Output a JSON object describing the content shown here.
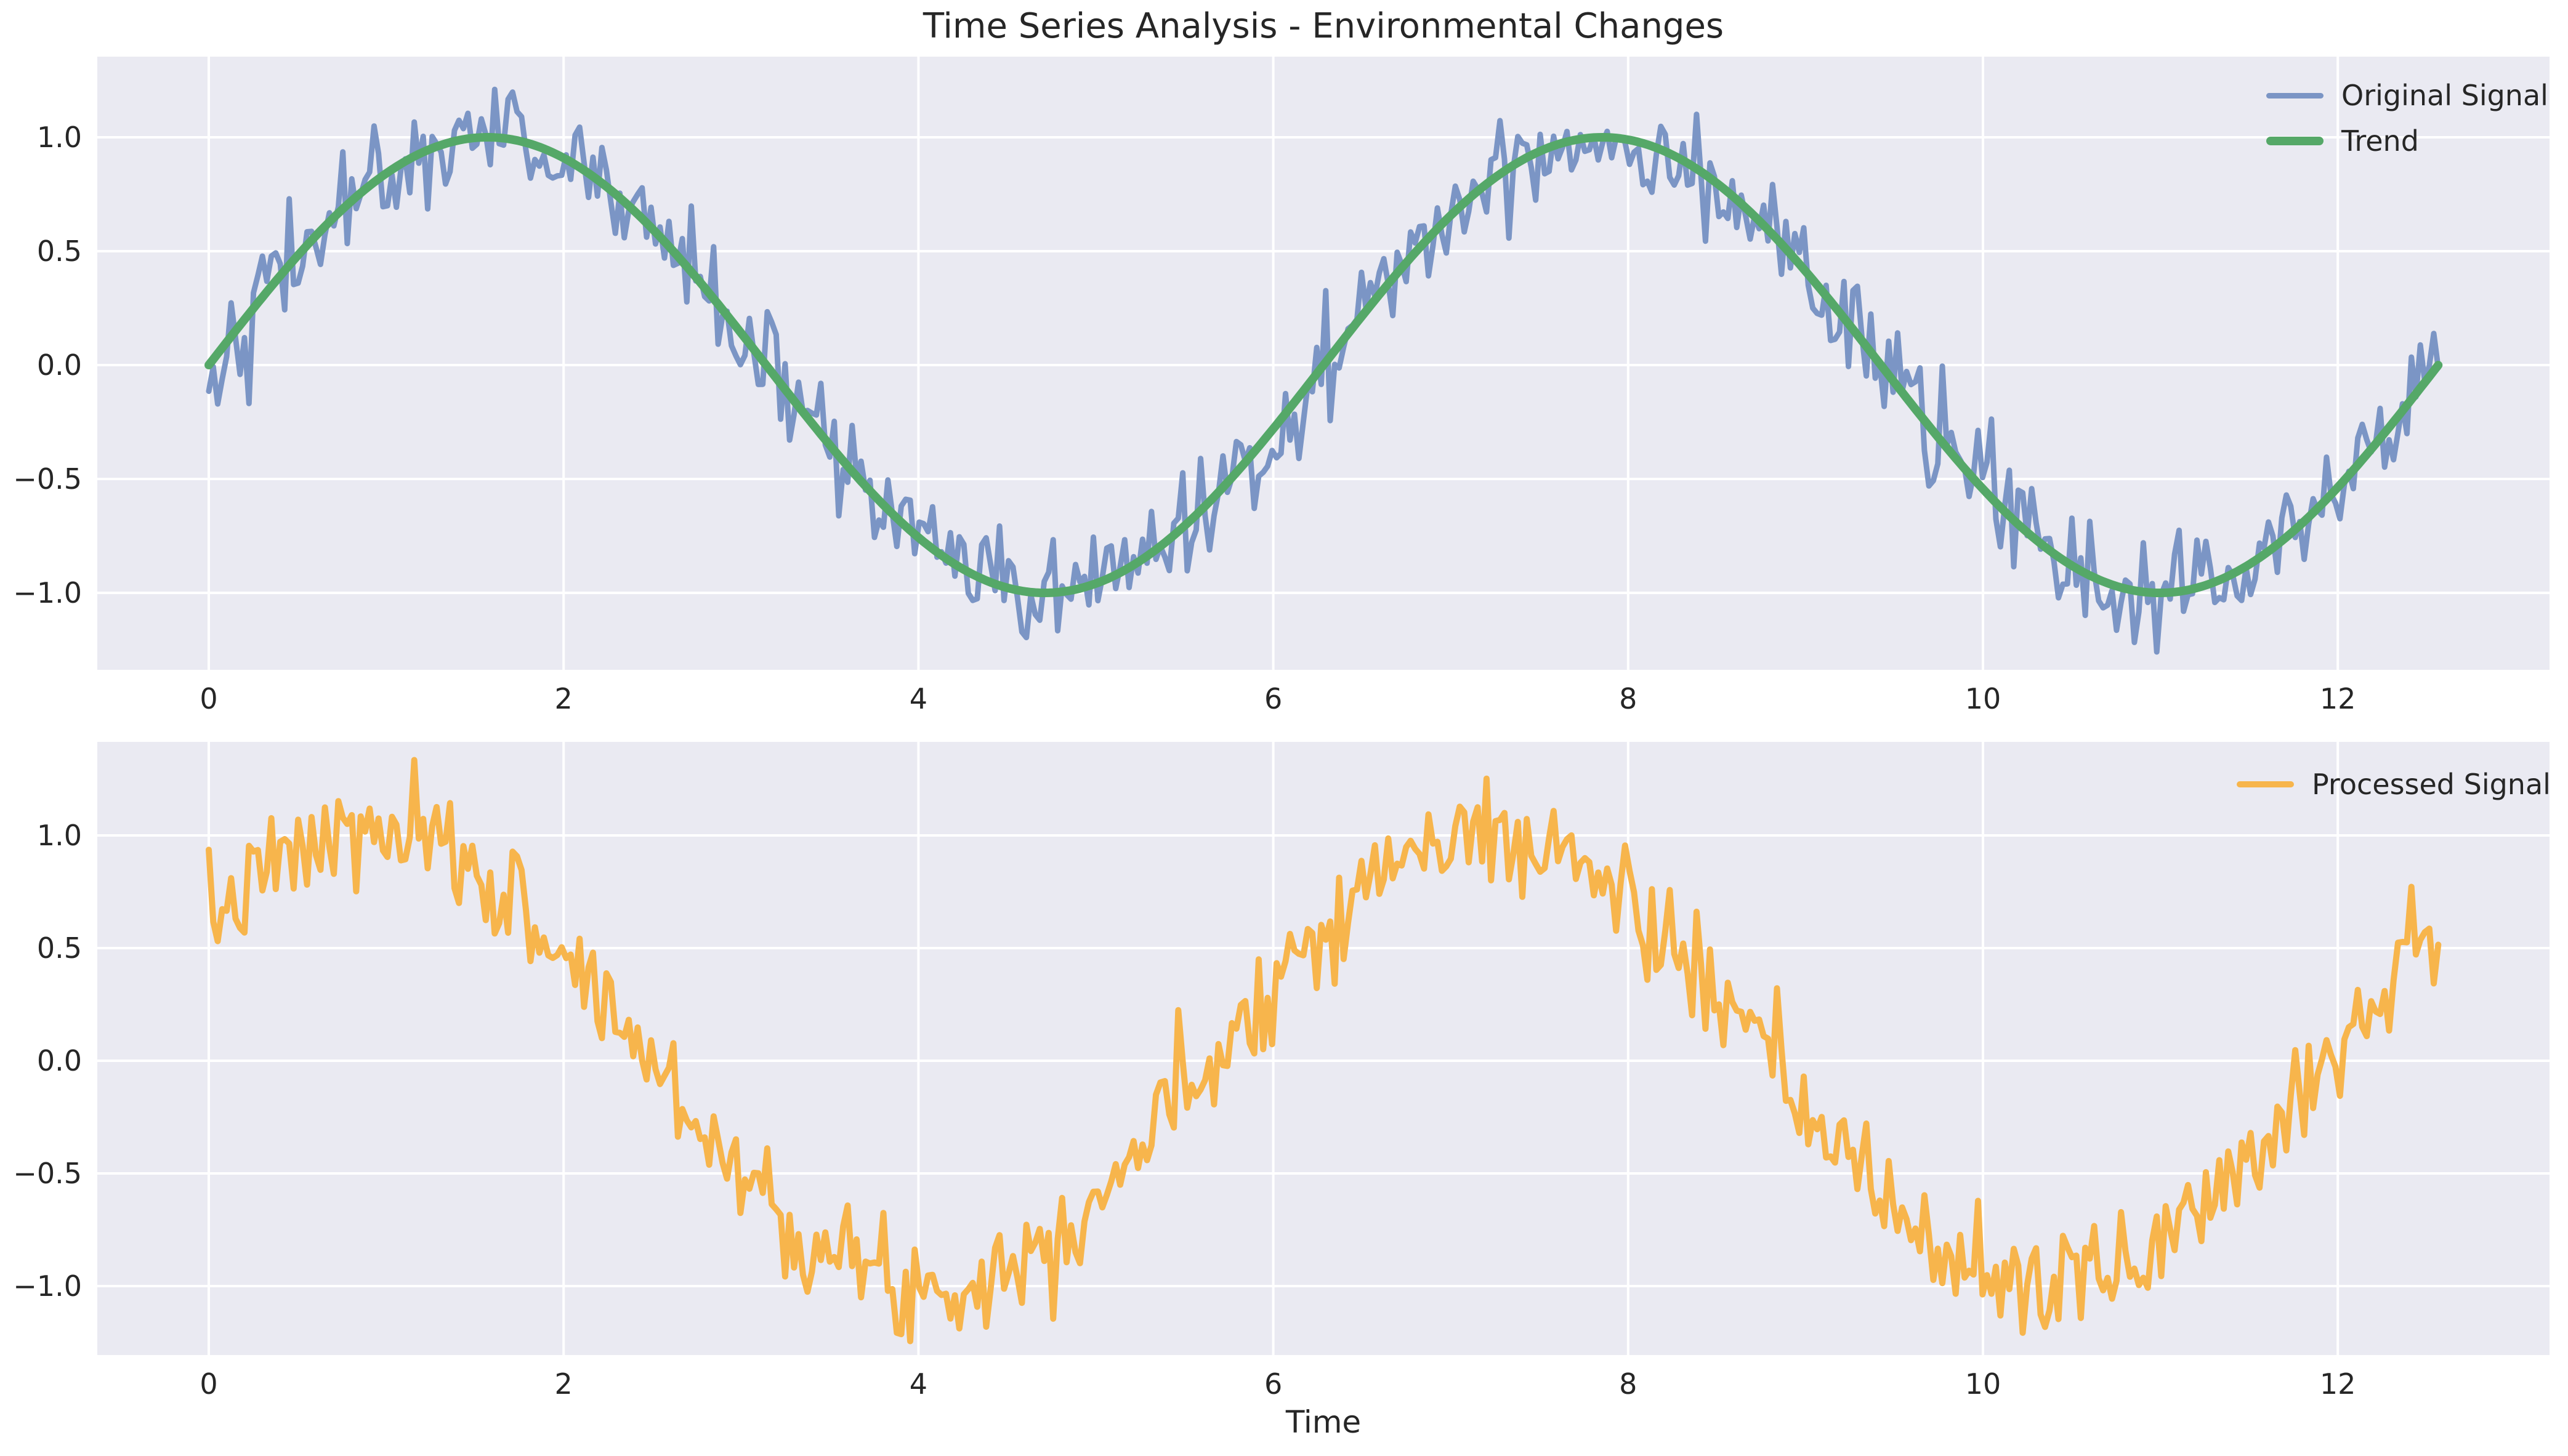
{
  "figure": {
    "title": "Time Series Analysis - Environmental Changes",
    "background_color": "#ffffff",
    "axes_background_color": "#eaeaf2",
    "grid_color": "#ffffff",
    "text_color": "#262626"
  },
  "chart_data": [
    {
      "type": "line",
      "subplot": "top",
      "title": "Time Series Analysis - Environmental Changes",
      "xlabel": "",
      "ylabel": "",
      "x_start": 0,
      "x_end": 12.566,
      "n_points": 500,
      "xlim": [
        -0.628,
        13.194
      ],
      "ylim": [
        -1.34,
        1.36
      ],
      "xticks": [
        0,
        2,
        4,
        6,
        8,
        10,
        12
      ],
      "yticks": [
        1.0,
        0.5,
        0.0,
        -0.5,
        -1.0
      ],
      "grid": true,
      "legend_position": "upper right",
      "series": [
        {
          "name": "Original Signal",
          "color": "#7b95c5",
          "line_width": 9,
          "model": "sin(t) + gaussian noise",
          "amplitude": 1,
          "phase": 0,
          "noise_std": 0.12,
          "seed": 42
        },
        {
          "name": "Trend",
          "color": "#55a868",
          "line_width": 14,
          "model": "sin(t)",
          "amplitude": 1,
          "phase": 0,
          "noise_std": 0,
          "seed": 0
        }
      ]
    },
    {
      "type": "line",
      "subplot": "bottom",
      "title": "",
      "xlabel": "Time",
      "ylabel": "",
      "x_start": 0,
      "x_end": 12.566,
      "n_points": 500,
      "xlim": [
        -0.628,
        13.194
      ],
      "ylim": [
        -1.31,
        1.42
      ],
      "xticks": [
        0,
        2,
        4,
        6,
        8,
        10,
        12
      ],
      "yticks": [
        1.0,
        0.5,
        0.0,
        -0.5,
        -1.0
      ],
      "grid": true,
      "legend_position": "upper right",
      "series": [
        {
          "name": "Processed Signal",
          "color": "#f7b54c",
          "line_width": 10,
          "model": "sin(t + 0.65) + gaussian noise",
          "amplitude": 1,
          "phase": 0.65,
          "noise_std": 0.12,
          "seed": 7
        }
      ]
    }
  ]
}
